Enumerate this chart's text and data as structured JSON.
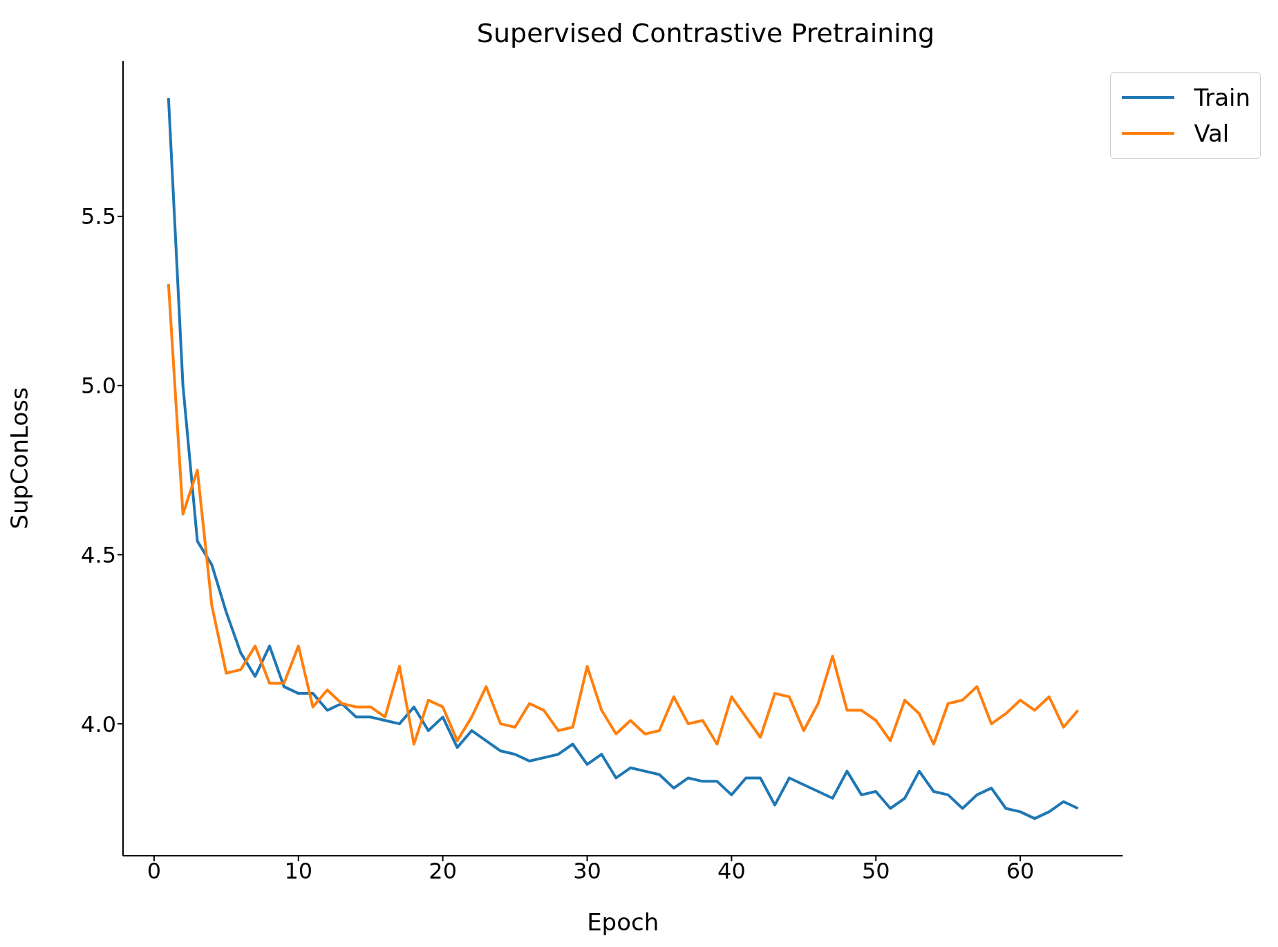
{
  "chart_data": {
    "type": "line",
    "title": "Supervised Contrastive Pretraining",
    "xlabel": "Epoch",
    "ylabel": "SupConLoss",
    "x": [
      1,
      2,
      3,
      4,
      5,
      6,
      7,
      8,
      9,
      10,
      11,
      12,
      13,
      14,
      15,
      16,
      17,
      18,
      19,
      20,
      21,
      22,
      23,
      24,
      25,
      26,
      27,
      28,
      29,
      30,
      31,
      32,
      33,
      34,
      35,
      36,
      37,
      38,
      39,
      40,
      41,
      42,
      43,
      44,
      45,
      46,
      47,
      48,
      49,
      50,
      51,
      52,
      53,
      54,
      55,
      56,
      57,
      58,
      59,
      60,
      61,
      62,
      63,
      64
    ],
    "series": [
      {
        "name": "Train",
        "color": "#1f77b4",
        "values": [
          5.85,
          5.0,
          4.54,
          4.47,
          4.33,
          4.21,
          4.14,
          4.23,
          4.11,
          4.09,
          4.09,
          4.04,
          4.06,
          4.02,
          4.02,
          4.01,
          4.0,
          4.05,
          3.98,
          4.02,
          3.93,
          3.98,
          3.95,
          3.92,
          3.91,
          3.89,
          3.9,
          3.91,
          3.94,
          3.88,
          3.91,
          3.84,
          3.87,
          3.86,
          3.85,
          3.81,
          3.84,
          3.83,
          3.83,
          3.79,
          3.84,
          3.84,
          3.76,
          3.84,
          3.82,
          3.8,
          3.78,
          3.86,
          3.79,
          3.8,
          3.75,
          3.78,
          3.86,
          3.8,
          3.79,
          3.75,
          3.79,
          3.81,
          3.75,
          3.74,
          3.72,
          3.74,
          3.77,
          3.75
        ]
      },
      {
        "name": "Val",
        "color": "#ff7f0e",
        "values": [
          5.3,
          4.62,
          4.75,
          4.35,
          4.15,
          4.16,
          4.23,
          4.12,
          4.12,
          4.23,
          4.05,
          4.1,
          4.06,
          4.05,
          4.05,
          4.02,
          4.17,
          3.94,
          4.07,
          4.05,
          3.95,
          4.02,
          4.11,
          4.0,
          3.99,
          4.06,
          4.04,
          3.98,
          3.99,
          4.17,
          4.04,
          3.97,
          4.01,
          3.97,
          3.98,
          4.08,
          4.0,
          4.01,
          3.94,
          4.08,
          4.02,
          3.96,
          4.09,
          4.08,
          3.98,
          4.06,
          4.2,
          4.04,
          4.04,
          4.01,
          3.95,
          4.07,
          4.03,
          3.94,
          4.06,
          4.07,
          4.11,
          4.0,
          4.03,
          4.07,
          4.04,
          4.08,
          3.99,
          4.04
        ]
      }
    ],
    "xlim": [
      -2.15,
      67.1
    ],
    "ylim": [
      3.61,
      5.96
    ],
    "xticks": [
      0,
      10,
      20,
      30,
      40,
      50,
      60
    ],
    "yticks": [
      {
        "value": 4.0,
        "label": "4.0"
      },
      {
        "value": 4.5,
        "label": "4.5"
      },
      {
        "value": 5.0,
        "label": "5.0"
      },
      {
        "value": 5.5,
        "label": "5.5"
      }
    ],
    "legend": "top right",
    "grid": false,
    "marker": "none",
    "line_style": "solid"
  }
}
